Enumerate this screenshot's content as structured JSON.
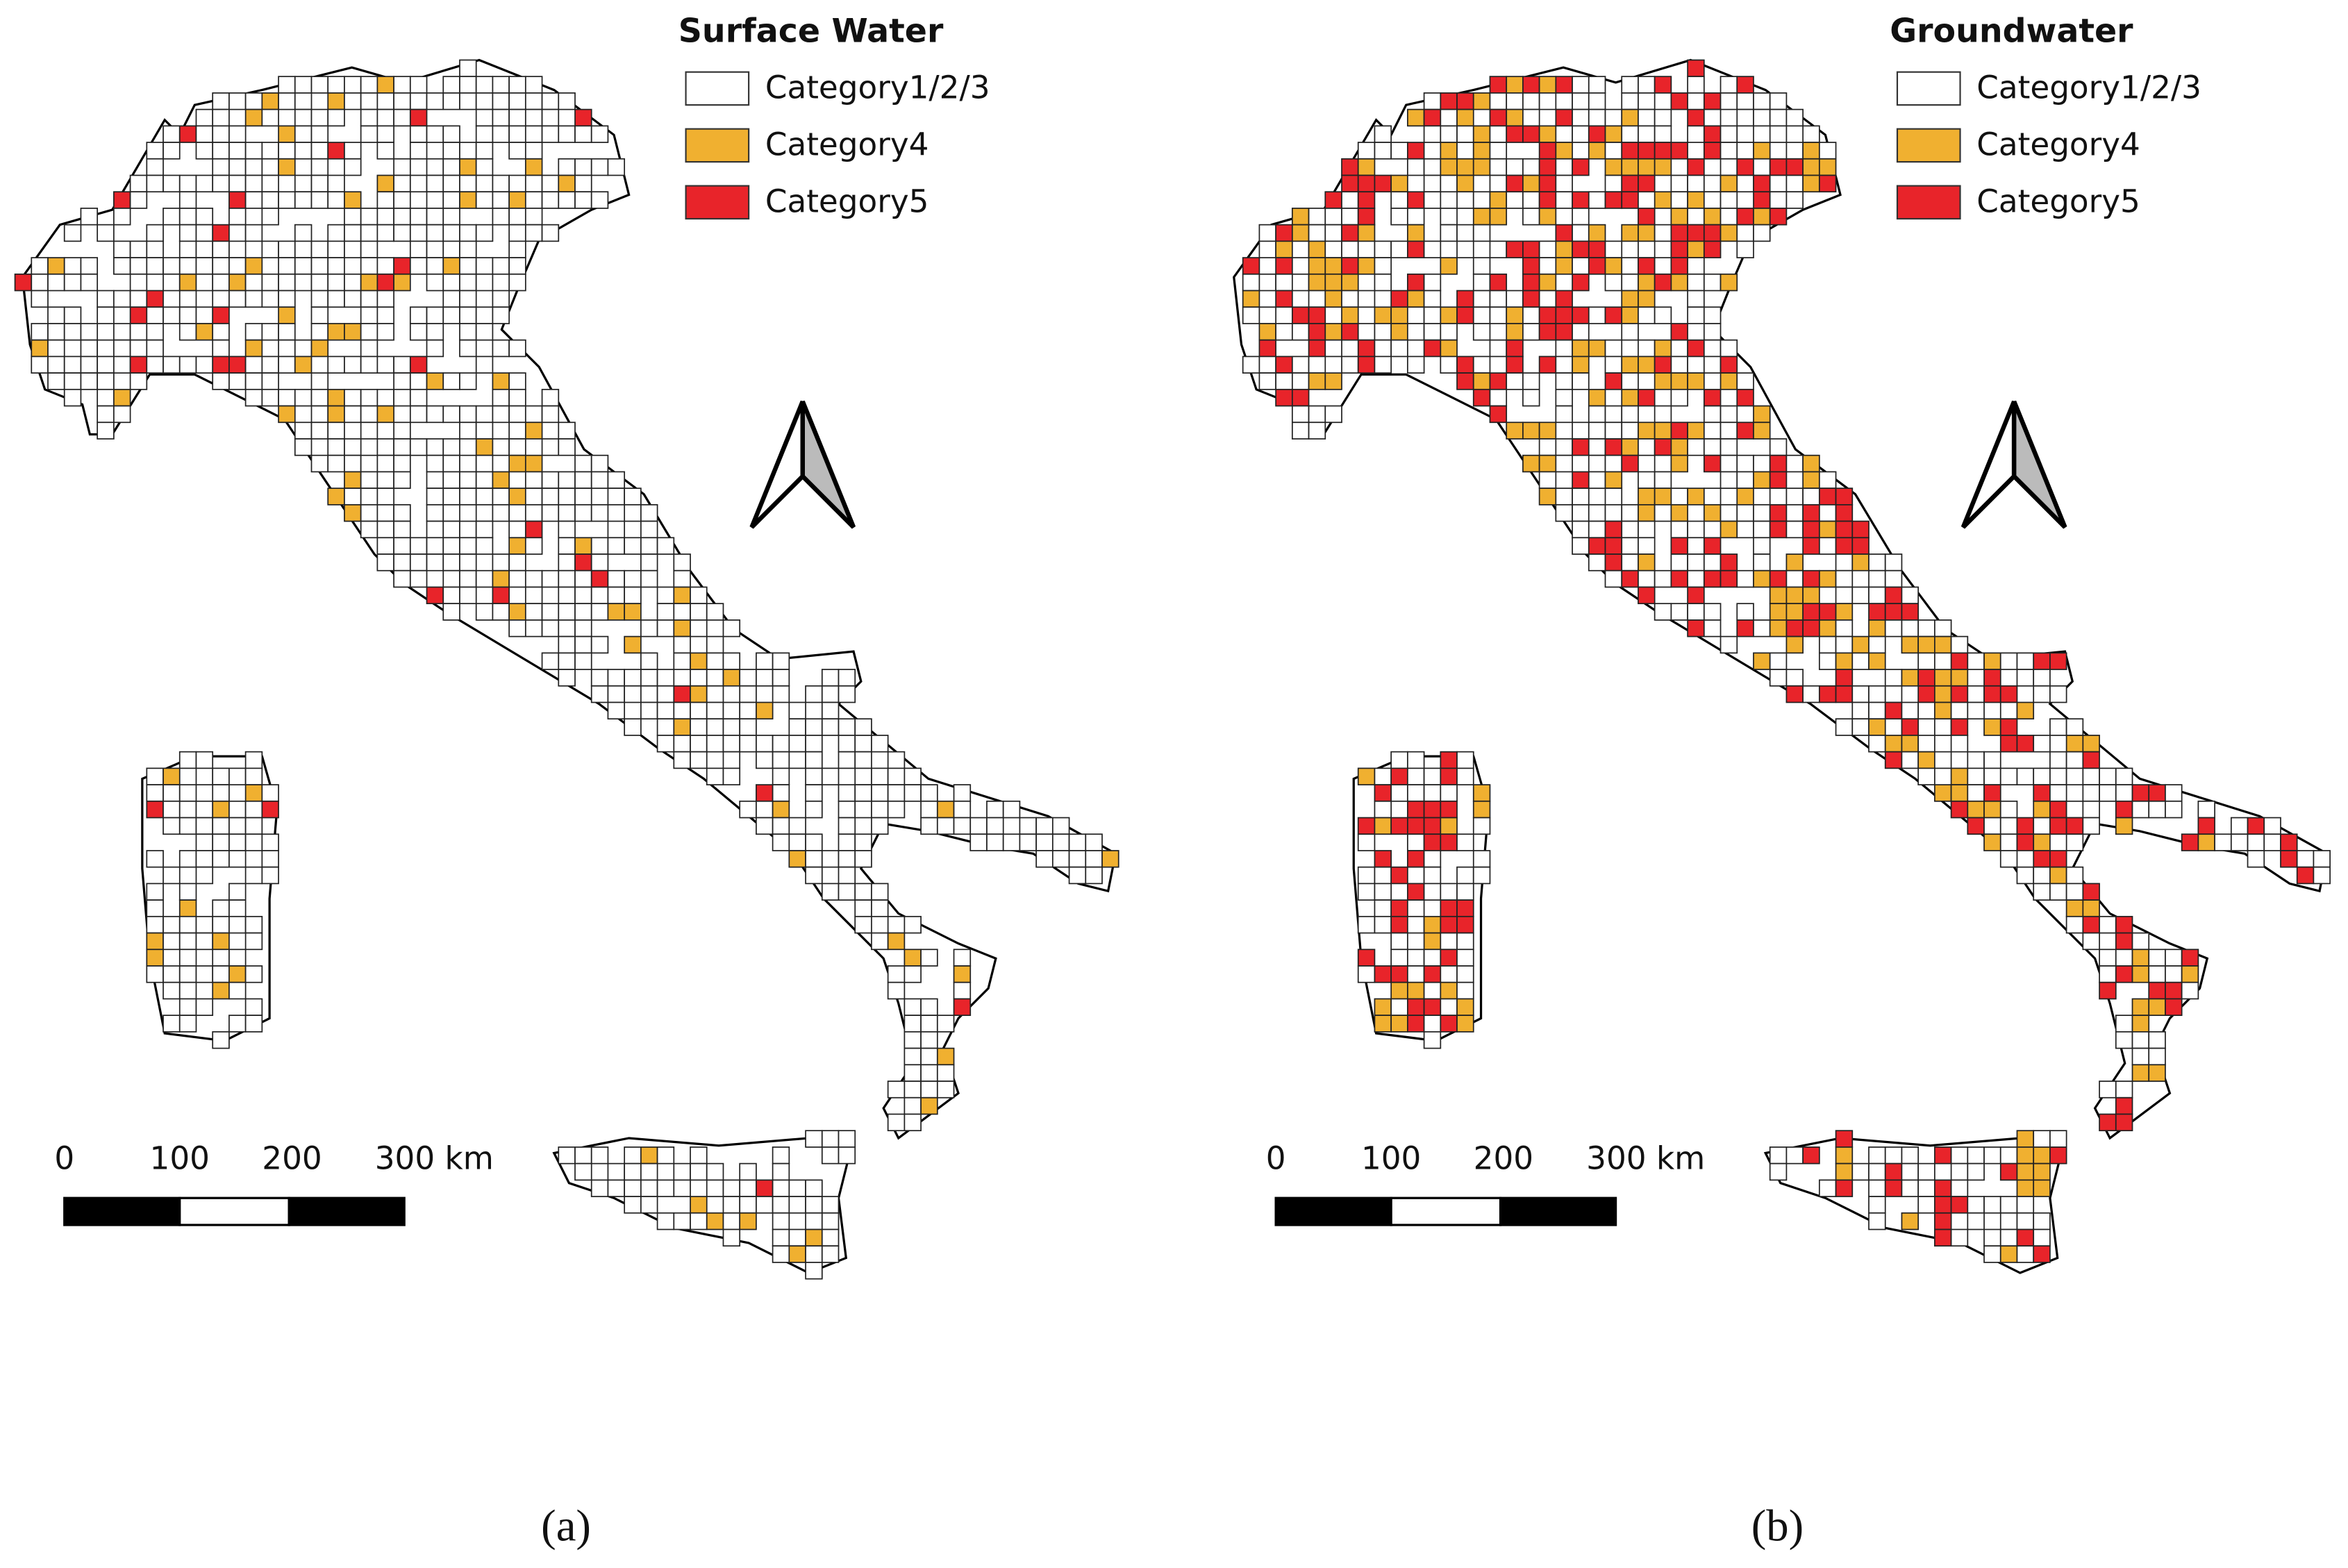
{
  "panels": [
    {
      "legend": {
        "title": "Surface Water",
        "items": [
          {
            "label": "Category1/2/3",
            "color": "#ffffff"
          },
          {
            "label": "Category4",
            "color": "#f0b030"
          },
          {
            "label": "Category5",
            "color": "#e8242a"
          }
        ]
      },
      "scale_bar": {
        "labels": [
          "0",
          "100",
          "200",
          "300 km"
        ]
      },
      "caption": "(a)"
    },
    {
      "legend": {
        "title": "Groundwater",
        "items": [
          {
            "label": "Category1/2/3",
            "color": "#ffffff"
          },
          {
            "label": "Category4",
            "color": "#f0b030"
          },
          {
            "label": "Category5",
            "color": "#e8242a"
          }
        ]
      },
      "scale_bar": {
        "labels": [
          "0",
          "100",
          "200",
          "300 km"
        ]
      },
      "caption": "(b)"
    }
  ]
}
